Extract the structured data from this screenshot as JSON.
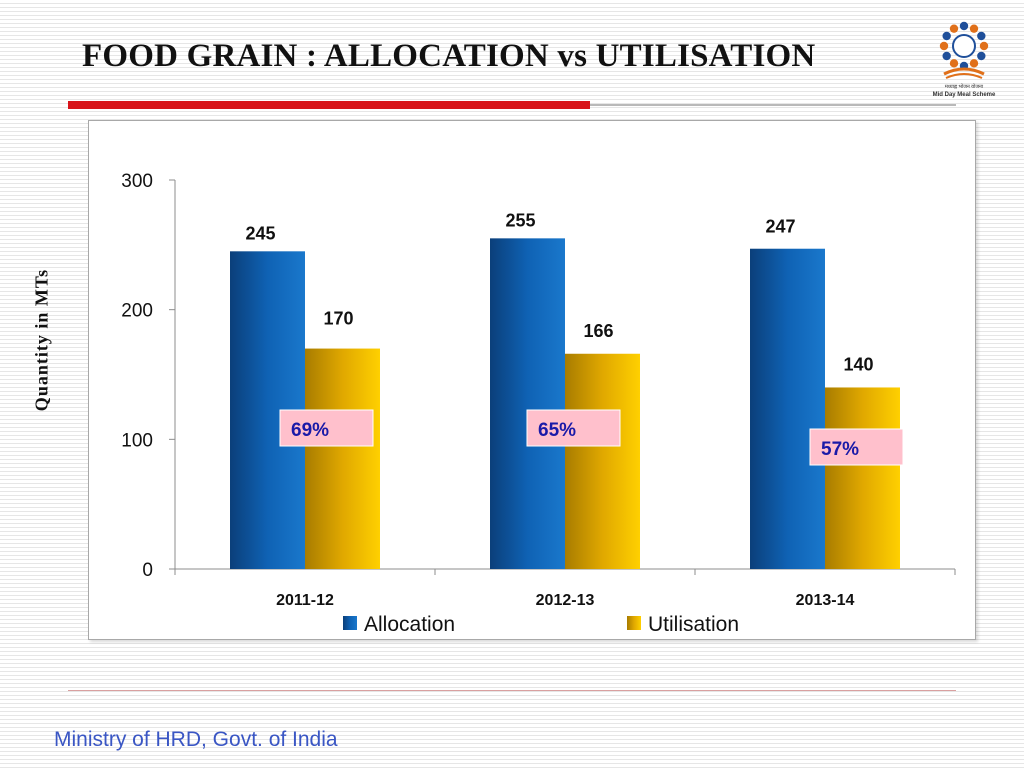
{
  "slide": {
    "title": "FOOD GRAIN : ALLOCATION vs UTILISATION",
    "footer": "Ministry of HRD, Govt. of India",
    "logo": {
      "text_line1": "मध्याह्न भोजन योजना",
      "text_line2": "Mid Day Meal Scheme"
    }
  },
  "colors": {
    "allocation": "#0f62b4",
    "utilisation": "#f0b800",
    "rule": "#d8141a",
    "footer": "#3a56c4",
    "percent_box": "#ffc0cc",
    "percent_text": "#1a1aa8"
  },
  "chart_data": {
    "type": "bar",
    "title": "",
    "ylabel": "Quantity in MTs",
    "xlabel": "",
    "categories": [
      "2011-12",
      "2012-13",
      "2013-14"
    ],
    "series": [
      {
        "name": "Allocation",
        "values": [
          245,
          255,
          247
        ]
      },
      {
        "name": "Utilisation",
        "values": [
          170,
          166,
          140
        ]
      }
    ],
    "annotations": [
      "69%",
      "65%",
      "57%"
    ],
    "ylim": [
      0,
      300
    ],
    "yticks": [
      0,
      100,
      200,
      300
    ],
    "legend": "bottom",
    "grid": false
  }
}
